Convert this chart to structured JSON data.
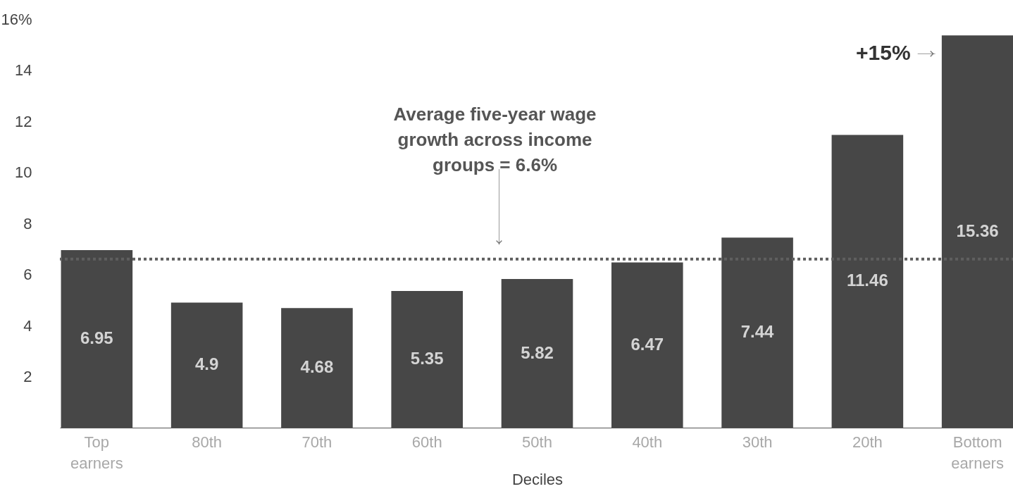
{
  "chart_data": {
    "type": "bar",
    "xlabel": "Deciles",
    "categories": [
      "Top earners",
      "80th",
      "70th",
      "60th",
      "50th",
      "40th",
      "30th",
      "20th",
      "Bottom earners"
    ],
    "values": [
      6.95,
      4.9,
      4.68,
      5.35,
      5.82,
      6.47,
      7.44,
      11.46,
      15.36
    ],
    "color": "#474747",
    "data_labels": true,
    "grid": false,
    "ylim": [
      0,
      16
    ],
    "yticks": [
      2,
      4,
      6,
      8,
      10,
      12,
      14,
      {
        "value": 16,
        "label": "16%"
      }
    ],
    "ref_lines": [
      {
        "axis": "y",
        "value": 6.6,
        "label": "Average five-year wage growth across income groups = 6.6%",
        "color": "#5f5f5f",
        "line_style": "dotted"
      }
    ],
    "annotations": [
      "+15%"
    ]
  }
}
